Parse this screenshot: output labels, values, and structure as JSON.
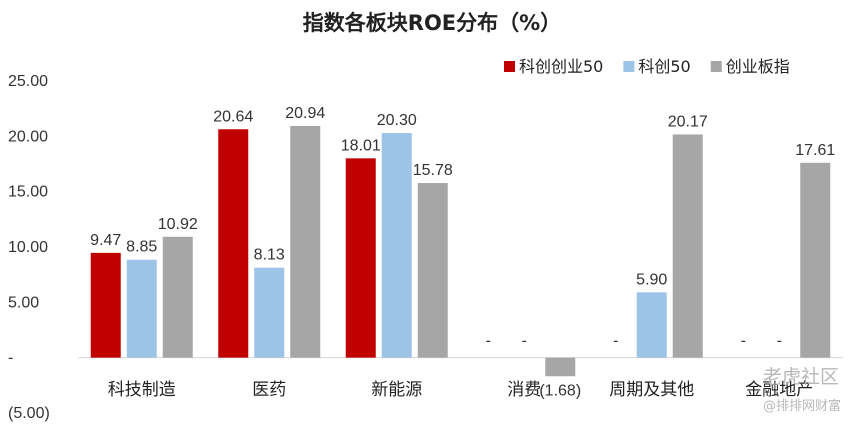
{
  "chart_data": {
    "type": "bar",
    "title": "指数各板块ROE分布（%）",
    "xlabel": "",
    "ylabel": "",
    "ylim": [
      -5,
      25
    ],
    "yticks": [
      25,
      20,
      15,
      10,
      5,
      0,
      -5
    ],
    "ytick_labels": [
      "25.00",
      "20.00",
      "15.00",
      "10.00",
      "5.00",
      "-",
      "(5.00)"
    ],
    "categories": [
      "科技制造",
      "医药",
      "新能源",
      "消费",
      "周期及其他",
      "金融地产"
    ],
    "series": [
      {
        "name": "科创创业50",
        "color": "#c00000",
        "values": [
          9.47,
          20.64,
          18.01,
          null,
          null,
          null
        ],
        "labels": [
          "9.47",
          "20.64",
          "18.01",
          "-",
          "-",
          "-"
        ]
      },
      {
        "name": "科创50",
        "color": "#9dc3e6",
        "values": [
          8.85,
          8.13,
          20.3,
          null,
          5.9,
          null
        ],
        "labels": [
          "8.85",
          "8.13",
          "20.30",
          "-",
          "5.90",
          "-"
        ]
      },
      {
        "name": "创业板指",
        "color": "#a6a6a6",
        "values": [
          10.92,
          20.94,
          15.78,
          -1.68,
          20.17,
          17.61
        ],
        "labels": [
          "10.92",
          "20.94",
          "15.78",
          "(1.68)",
          "20.17",
          "17.61"
        ]
      }
    ],
    "legend_position": "top-right",
    "grid": false
  },
  "watermark": {
    "line1": "老虎社区",
    "line2": "@排排网财富"
  }
}
